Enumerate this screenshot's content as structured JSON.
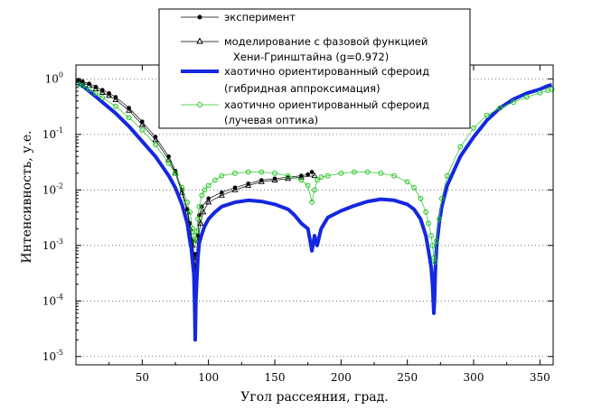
{
  "chart_data": {
    "type": "line",
    "xlabel": "Угол рассеяния, град.",
    "ylabel": "Интенсивность, у.е.",
    "xlim": [
      0,
      360
    ],
    "ylim_log10": [
      -5.15,
      0.25
    ],
    "y_scale": "log",
    "x_ticks": [
      50,
      100,
      150,
      200,
      250,
      300,
      350
    ],
    "x_tick_labels": [
      "50",
      "100",
      "150",
      "200",
      "250",
      "300",
      "350"
    ],
    "y_ticks": [
      {
        "exp": 0,
        "base": "10",
        "sup": "0"
      },
      {
        "exp": -1,
        "base": "10",
        "sup": "-1"
      },
      {
        "exp": -2,
        "base": "10",
        "sup": "-2"
      },
      {
        "exp": -3,
        "base": "10",
        "sup": "-3"
      },
      {
        "exp": -4,
        "base": "10",
        "sup": "-4"
      },
      {
        "exp": -5,
        "base": "10",
        "sup": "-5"
      }
    ],
    "grid": "horizontal dotted",
    "legend_position": "top-right",
    "series": [
      {
        "name": "эксперимент",
        "legend_lines": [
          "эксперимент"
        ],
        "color": "#000000",
        "style": "filled-circles",
        "x": [
          2,
          5,
          10,
          15,
          20,
          25,
          30,
          40,
          50,
          60,
          70,
          75,
          80,
          84,
          86,
          88,
          89,
          90,
          91,
          92,
          93,
          95,
          100,
          110,
          120,
          130,
          140,
          150,
          160,
          170,
          175,
          178
        ],
        "y": [
          0.95,
          0.9,
          0.82,
          0.72,
          0.63,
          0.55,
          0.47,
          0.3,
          0.17,
          0.09,
          0.04,
          0.022,
          0.01,
          0.0045,
          0.0025,
          0.0012,
          0.0007,
          0.0004,
          0.0007,
          0.0015,
          0.0035,
          0.005,
          0.007,
          0.009,
          0.011,
          0.013,
          0.015,
          0.016,
          0.017,
          0.018,
          0.019,
          0.021
        ]
      },
      {
        "name": "моделирование с фазовой функцией Хени-Гринштайна (g=0.972)",
        "legend_lines": [
          "моделирование с фазовой функцией",
          "Хени-Гринштайна (g=0.972)"
        ],
        "color": "#000000",
        "style": "open-triangles",
        "x": [
          2,
          5,
          10,
          15,
          20,
          25,
          30,
          40,
          50,
          60,
          70,
          75,
          80,
          84,
          86,
          88,
          89,
          90,
          91,
          92,
          94,
          96,
          100,
          110,
          120,
          130,
          140,
          150,
          160,
          170,
          180
        ],
        "y": [
          0.92,
          0.86,
          0.76,
          0.66,
          0.57,
          0.5,
          0.42,
          0.27,
          0.15,
          0.08,
          0.035,
          0.02,
          0.009,
          0.004,
          0.002,
          0.001,
          0.0006,
          0.0003,
          0.0006,
          0.0012,
          0.0025,
          0.004,
          0.006,
          0.008,
          0.01,
          0.012,
          0.014,
          0.015,
          0.016,
          0.017,
          0.018
        ]
      },
      {
        "name": "хаотично ориентированный сфероид (гибридная аппроксимация)",
        "legend_lines": [
          "хаотично ориентированный сфероид",
          "(гибридная аппроксимация)"
        ],
        "color": "#1428e0",
        "style": "thick-line",
        "x": [
          2,
          5,
          10,
          15,
          20,
          30,
          40,
          50,
          60,
          70,
          75,
          80,
          84,
          86,
          87,
          88,
          89,
          89.5,
          90,
          90.5,
          91,
          92,
          93,
          95,
          97,
          100,
          105,
          110,
          120,
          130,
          140,
          150,
          160,
          165,
          170,
          175,
          178,
          180,
          182,
          185,
          190,
          200,
          210,
          220,
          230,
          240,
          250,
          255,
          260,
          264,
          266,
          268,
          269,
          270,
          270.5,
          271,
          272,
          274,
          276,
          280,
          290,
          300,
          310,
          320,
          330,
          340,
          350,
          356,
          359
        ],
        "y": [
          0.82,
          0.75,
          0.6,
          0.48,
          0.38,
          0.24,
          0.14,
          0.075,
          0.04,
          0.018,
          0.011,
          0.0055,
          0.0025,
          0.0012,
          0.0009,
          0.0005,
          0.0003,
          0.0001,
          2e-05,
          0.0001,
          0.0002,
          0.0006,
          0.0011,
          0.0016,
          0.0022,
          0.003,
          0.004,
          0.005,
          0.006,
          0.0065,
          0.0062,
          0.0055,
          0.0045,
          0.0035,
          0.0025,
          0.002,
          0.0008,
          0.0015,
          0.001,
          0.002,
          0.0032,
          0.0042,
          0.0052,
          0.0062,
          0.0068,
          0.0065,
          0.0055,
          0.0045,
          0.003,
          0.0015,
          0.0008,
          0.0004,
          0.0002,
          6e-05,
          0.0001,
          0.0003,
          0.0009,
          0.0025,
          0.005,
          0.012,
          0.04,
          0.09,
          0.18,
          0.3,
          0.43,
          0.55,
          0.65,
          0.75,
          0.78
        ]
      },
      {
        "name": "хаотично ориентированный сфероид (лучевая оптика)",
        "legend_lines": [
          "хаотично ориентированный сфероид",
          "(лучевая оптика)"
        ],
        "color": "#22c422",
        "style": "open-circles",
        "x": [
          2,
          5,
          10,
          15,
          20,
          30,
          40,
          50,
          60,
          70,
          75,
          80,
          84,
          86,
          88,
          89,
          90,
          91,
          92,
          93,
          95,
          97,
          100,
          105,
          110,
          120,
          130,
          140,
          150,
          160,
          170,
          175,
          178,
          180,
          182,
          185,
          190,
          200,
          210,
          220,
          230,
          240,
          250,
          255,
          260,
          264,
          266,
          268,
          269,
          270,
          271,
          272,
          274,
          276,
          280,
          290,
          300,
          310,
          320,
          330,
          340,
          350,
          356,
          359
        ],
        "y": [
          0.8,
          0.75,
          0.65,
          0.55,
          0.46,
          0.32,
          0.2,
          0.12,
          0.065,
          0.03,
          0.02,
          0.011,
          0.006,
          0.004,
          0.002,
          0.0015,
          0.0012,
          0.0018,
          0.003,
          0.005,
          0.008,
          0.01,
          0.012,
          0.015,
          0.018,
          0.02,
          0.021,
          0.021,
          0.02,
          0.018,
          0.015,
          0.012,
          0.006,
          0.01,
          0.015,
          0.017,
          0.018,
          0.02,
          0.021,
          0.021,
          0.02,
          0.018,
          0.014,
          0.011,
          0.007,
          0.004,
          0.0025,
          0.0015,
          0.001,
          0.0006,
          0.0005,
          0.0012,
          0.003,
          0.007,
          0.018,
          0.06,
          0.13,
          0.22,
          0.3,
          0.38,
          0.47,
          0.56,
          0.62,
          0.65
        ]
      }
    ]
  }
}
